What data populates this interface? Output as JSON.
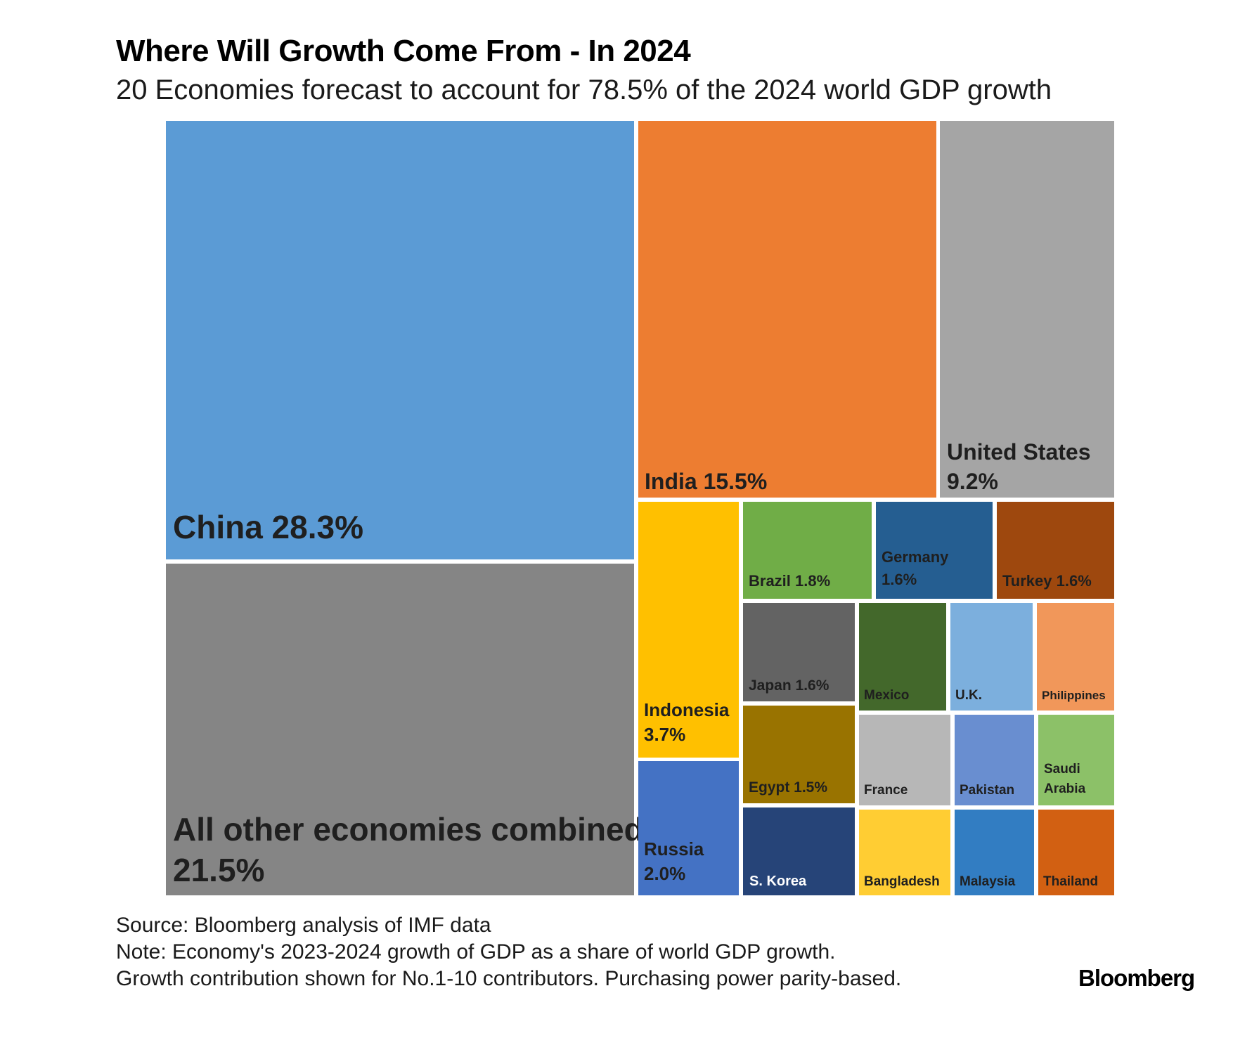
{
  "header": {
    "title": "Where Will Growth Come From - In 2024",
    "subtitle": "20 Economies forecast to account for 78.5% of the 2024 world GDP growth"
  },
  "footer": {
    "source": "Source: Bloomberg analysis of IMF data",
    "note_line1": "Note: Economy's 2023-2024 growth of GDP as a share of world GDP growth.",
    "note_line2": "Growth contribution shown for No.1-10 contributors. Purchasing power parity-based.",
    "brand": "Bloomberg"
  },
  "chart_data": {
    "type": "treemap",
    "title": "Where Will Growth Come From - In 2024",
    "subtitle": "20 Economies forecast to account for 78.5% of the 2024 world GDP growth",
    "unit": "% of world GDP growth",
    "items": [
      {
        "name": "China",
        "label_lines": [
          "China 28.3%"
        ],
        "value": 28.3,
        "color": "#5b9bd5",
        "text_color": "#1f1f1f"
      },
      {
        "name": "All other economies combined",
        "label_lines": [
          "All other economies combined",
          "21.5%"
        ],
        "value": 21.5,
        "color": "#858585",
        "text_color": "#1f1f1f"
      },
      {
        "name": "India",
        "label_lines": [
          "India 15.5%"
        ],
        "value": 15.5,
        "color": "#ed7d31",
        "text_color": "#1f1f1f"
      },
      {
        "name": "United States",
        "label_lines": [
          "United States",
          "9.2%"
        ],
        "value": 9.2,
        "color": "#a5a5a5",
        "text_color": "#1f1f1f"
      },
      {
        "name": "Indonesia",
        "label_lines": [
          "Indonesia",
          "3.7%"
        ],
        "value": 3.7,
        "color": "#ffc000",
        "text_color": "#1f1f1f"
      },
      {
        "name": "Russia",
        "label_lines": [
          "Russia",
          "2.0%"
        ],
        "value": 2.0,
        "color": "#4472c4",
        "text_color": "#1f1f1f"
      },
      {
        "name": "Brazil",
        "label_lines": [
          "Brazil 1.8%"
        ],
        "value": 1.8,
        "color": "#70ad47",
        "text_color": "#1f1f1f"
      },
      {
        "name": "Germany",
        "label_lines": [
          "Germany",
          "1.6%"
        ],
        "value": 1.6,
        "color": "#255e91",
        "text_color": "#1f1f1f"
      },
      {
        "name": "Turkey",
        "label_lines": [
          "Turkey 1.6%"
        ],
        "value": 1.6,
        "color": "#9e480e",
        "text_color": "#1f1f1f"
      },
      {
        "name": "Japan",
        "label_lines": [
          "Japan 1.6%"
        ],
        "value": 1.6,
        "color": "#636363",
        "text_color": "#1f1f1f"
      },
      {
        "name": "Egypt",
        "label_lines": [
          "Egypt 1.5%"
        ],
        "value": 1.5,
        "color": "#997300",
        "text_color": "#1f1f1f"
      },
      {
        "name": "Mexico",
        "label_lines": [
          "Mexico"
        ],
        "value": null,
        "color": "#43682b",
        "text_color": "#1f1f1f"
      },
      {
        "name": "U.K.",
        "label_lines": [
          "U.K."
        ],
        "value": null,
        "color": "#7cafdd",
        "text_color": "#1f1f1f"
      },
      {
        "name": "Philippines",
        "label_lines": [
          "Philippines"
        ],
        "value": null,
        "color": "#f1975a",
        "text_color": "#1f1f1f"
      },
      {
        "name": "France",
        "label_lines": [
          "France"
        ],
        "value": null,
        "color": "#b7b7b7",
        "text_color": "#1f1f1f"
      },
      {
        "name": "Pakistan",
        "label_lines": [
          "Pakistan"
        ],
        "value": null,
        "color": "#698ed0",
        "text_color": "#1f1f1f"
      },
      {
        "name": "Saudi Arabia",
        "label_lines": [
          "Saudi",
          "Arabia"
        ],
        "value": null,
        "color": "#8cc168",
        "text_color": "#1f1f1f"
      },
      {
        "name": "S. Korea",
        "label_lines": [
          "S. Korea"
        ],
        "value": null,
        "color": "#264478",
        "text_color": "#ffffff"
      },
      {
        "name": "Bangladesh",
        "label_lines": [
          "Bangladesh"
        ],
        "value": null,
        "color": "#ffcd33",
        "text_color": "#1f1f1f"
      },
      {
        "name": "Malaysia",
        "label_lines": [
          "Malaysia"
        ],
        "value": null,
        "color": "#327dc2",
        "text_color": "#1f1f1f"
      },
      {
        "name": "Thailand",
        "label_lines": [
          "Thailand"
        ],
        "value": null,
        "color": "#d26012",
        "text_color": "#1f1f1f"
      }
    ]
  }
}
